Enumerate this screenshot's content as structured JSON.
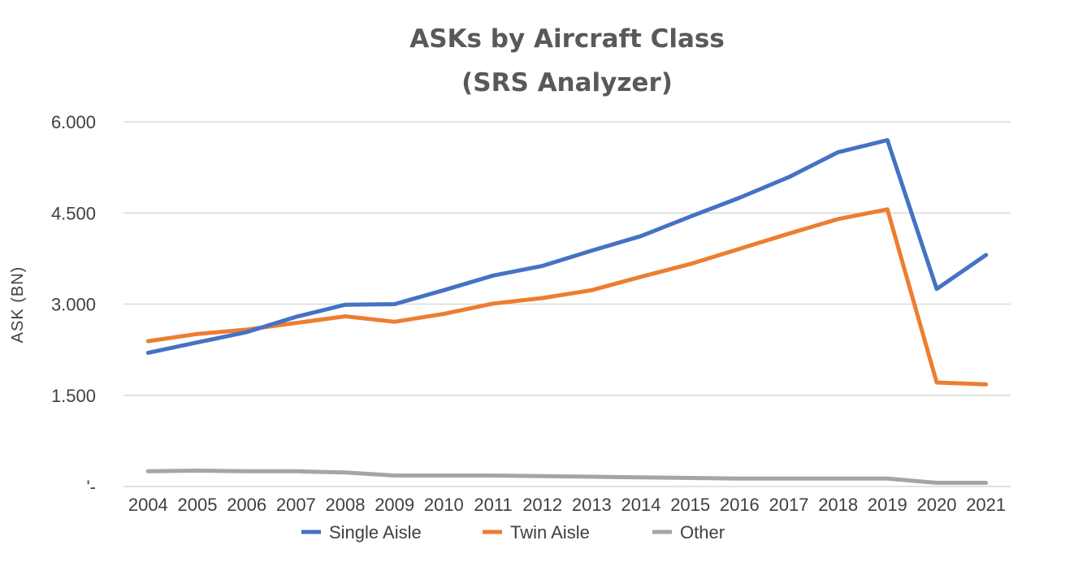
{
  "chart_data": {
    "type": "line",
    "title": [
      "ASKs by Aircraft Class",
      "(SRS Analyzer)"
    ],
    "ylabel": "ASK  (BN)",
    "xlabel": "",
    "ylim": [
      0,
      6000
    ],
    "y_ticks": [
      {
        "value": 0,
        "label": "'-"
      },
      {
        "value": 1500,
        "label": "1.500"
      },
      {
        "value": 3000,
        "label": "3.000"
      },
      {
        "value": 4500,
        "label": "4.500"
      },
      {
        "value": 6000,
        "label": "6.000"
      }
    ],
    "grid": true,
    "legend": "bottom",
    "categories": [
      "2004",
      "2005",
      "2006",
      "2007",
      "2008",
      "2009",
      "2010",
      "2011",
      "2012",
      "2013",
      "2014",
      "2015",
      "2016",
      "2017",
      "2018",
      "2019",
      "2020",
      "2021"
    ],
    "series": [
      {
        "name": "Single Aisle",
        "color": "#4472c4",
        "values": [
          2200,
          2370,
          2540,
          2790,
          2990,
          3000,
          3230,
          3470,
          3630,
          3880,
          4120,
          4440,
          4750,
          5090,
          5500,
          5700,
          3250,
          3810
        ]
      },
      {
        "name": "Twin Aisle",
        "color": "#ed7d31",
        "values": [
          2390,
          2510,
          2580,
          2690,
          2800,
          2710,
          2840,
          3010,
          3100,
          3230,
          3450,
          3660,
          3910,
          4160,
          4400,
          4560,
          1710,
          1680
        ]
      },
      {
        "name": "Other",
        "color": "#a5a5a5",
        "values": [
          250,
          260,
          250,
          250,
          230,
          180,
          180,
          180,
          170,
          160,
          150,
          140,
          130,
          130,
          130,
          130,
          60,
          60
        ]
      }
    ]
  }
}
